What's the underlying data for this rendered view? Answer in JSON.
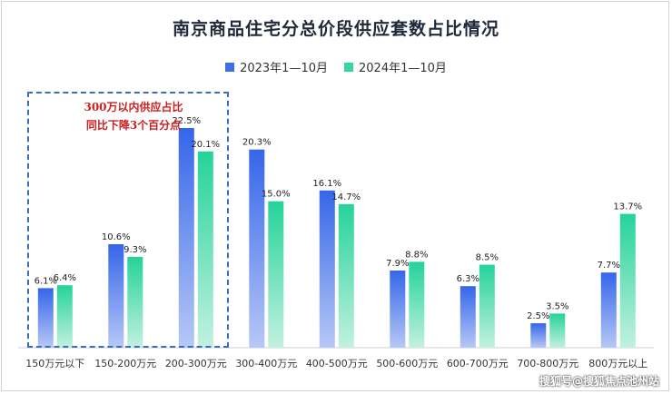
{
  "chart_data": {
    "type": "bar",
    "title": "南京商品住宅分总价段供应套数占比情况",
    "categories": [
      "150万元以下",
      "150-200万元",
      "200-300万元",
      "300-400万元",
      "400-500万元",
      "500-600万元",
      "600-700万元",
      "700-800万元",
      "800万元以上"
    ],
    "series": [
      {
        "name": "2023年1—10月",
        "values": [
          6.1,
          10.6,
          22.5,
          20.3,
          16.1,
          7.9,
          6.3,
          2.5,
          7.7
        ],
        "labels": [
          "6.1%",
          "10.6%",
          "22.5%",
          "20.3%",
          "16.1%",
          "7.9%",
          "6.3%",
          "2.5%",
          "7.7%"
        ],
        "color": "#3f6fe8"
      },
      {
        "name": "2024年1—10月",
        "values": [
          6.4,
          9.3,
          20.1,
          15.0,
          14.7,
          8.8,
          8.5,
          3.5,
          13.7
        ],
        "labels": [
          "6.4%",
          "9.3%",
          "20.1%",
          "15.0%",
          "14.7%",
          "8.8%",
          "8.5%",
          "3.5%",
          "13.7%"
        ],
        "color": "#2fd8a0"
      }
    ],
    "ylim": [
      0,
      25
    ],
    "grid": false,
    "legend": "top-center",
    "annotation": {
      "lines": [
        "300万以内供应占比",
        "同比下降3个百分点"
      ]
    }
  },
  "watermark": "搜狐号@搜狐焦点池州站"
}
